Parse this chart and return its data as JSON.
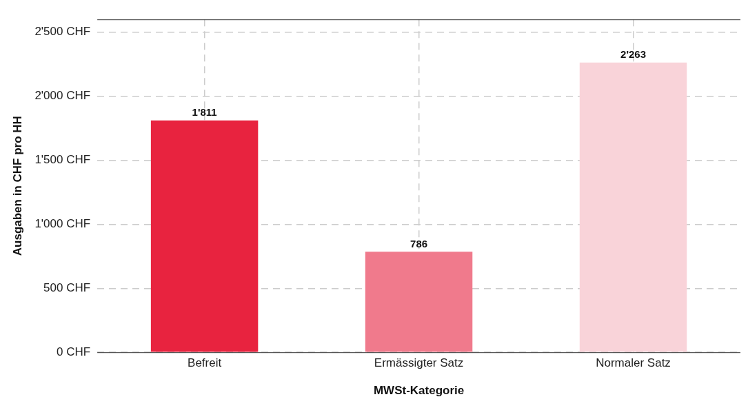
{
  "chart_data": {
    "type": "bar",
    "xlabel": "MWSt-Kategorie",
    "ylabel": "Ausgaben in CHF pro HH",
    "categories": [
      "Befreit",
      "Ermässigter Satz",
      "Normaler Satz"
    ],
    "values": [
      1811,
      786,
      2263
    ],
    "colors": [
      "#e8233f",
      "#f07a8c",
      "#f9d3d9"
    ],
    "value_labels": [
      "1'811",
      "786",
      "2'263"
    ],
    "ylim": [
      0,
      2600
    ],
    "yticks": [
      {
        "value": 0,
        "label": "0 CHF"
      },
      {
        "value": 500,
        "label": "500 CHF"
      },
      {
        "value": 1000,
        "label": "1'000 CHF"
      },
      {
        "value": 1500,
        "label": "1'500 CHF"
      },
      {
        "value": 2000,
        "label": "2'000 CHF"
      },
      {
        "value": 2500,
        "label": "2'500 CHF"
      }
    ],
    "grid": true,
    "legend": false
  }
}
